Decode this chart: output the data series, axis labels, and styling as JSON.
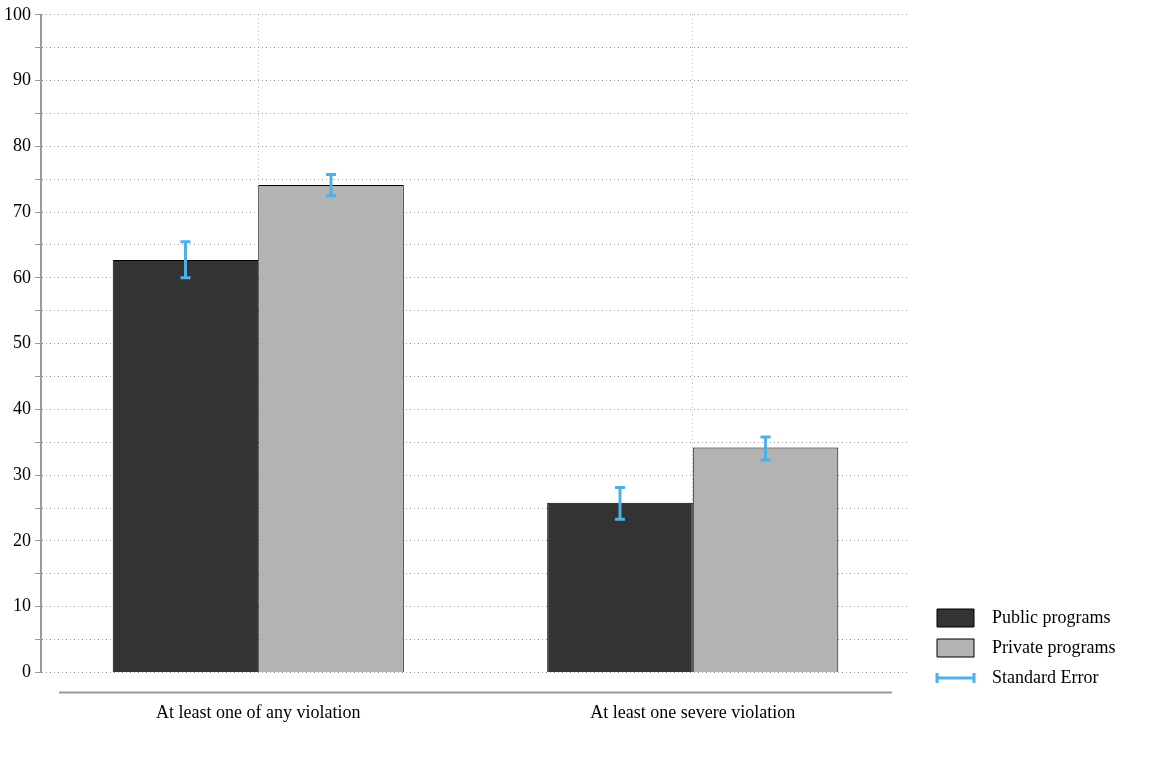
{
  "chart_data": {
    "type": "bar",
    "categories": [
      "At least one of any violation",
      "At least one severe violation"
    ],
    "series": [
      {
        "name": "Public programs",
        "color": "#333333",
        "values": [
          62.7,
          25.8
        ],
        "errors": [
          [
            60.0,
            65.5
          ],
          [
            23.3,
            28.1
          ]
        ]
      },
      {
        "name": "Private programs",
        "color": "#b3b3b3",
        "values": [
          74.1,
          34.2
        ],
        "errors": [
          [
            72.5,
            75.7
          ],
          [
            32.3,
            35.8
          ]
        ]
      }
    ],
    "ylim": [
      0,
      100
    ],
    "yticks": [
      0,
      {
        "value": 5,
        "label": null
      },
      10,
      {
        "value": 15,
        "label": null
      },
      20,
      {
        "value": 25,
        "label": null
      },
      30,
      {
        "value": 35,
        "label": null
      },
      40,
      {
        "value": 45,
        "label": null
      },
      50,
      {
        "value": 55,
        "label": null
      },
      60,
      {
        "value": 65,
        "label": null
      },
      70,
      {
        "value": 75,
        "label": null
      },
      80,
      {
        "value": 85,
        "label": null
      },
      90,
      {
        "value": 95,
        "label": null
      },
      100
    ],
    "grid": true,
    "legend": "right",
    "annotations": [
      "Standard Error"
    ]
  }
}
